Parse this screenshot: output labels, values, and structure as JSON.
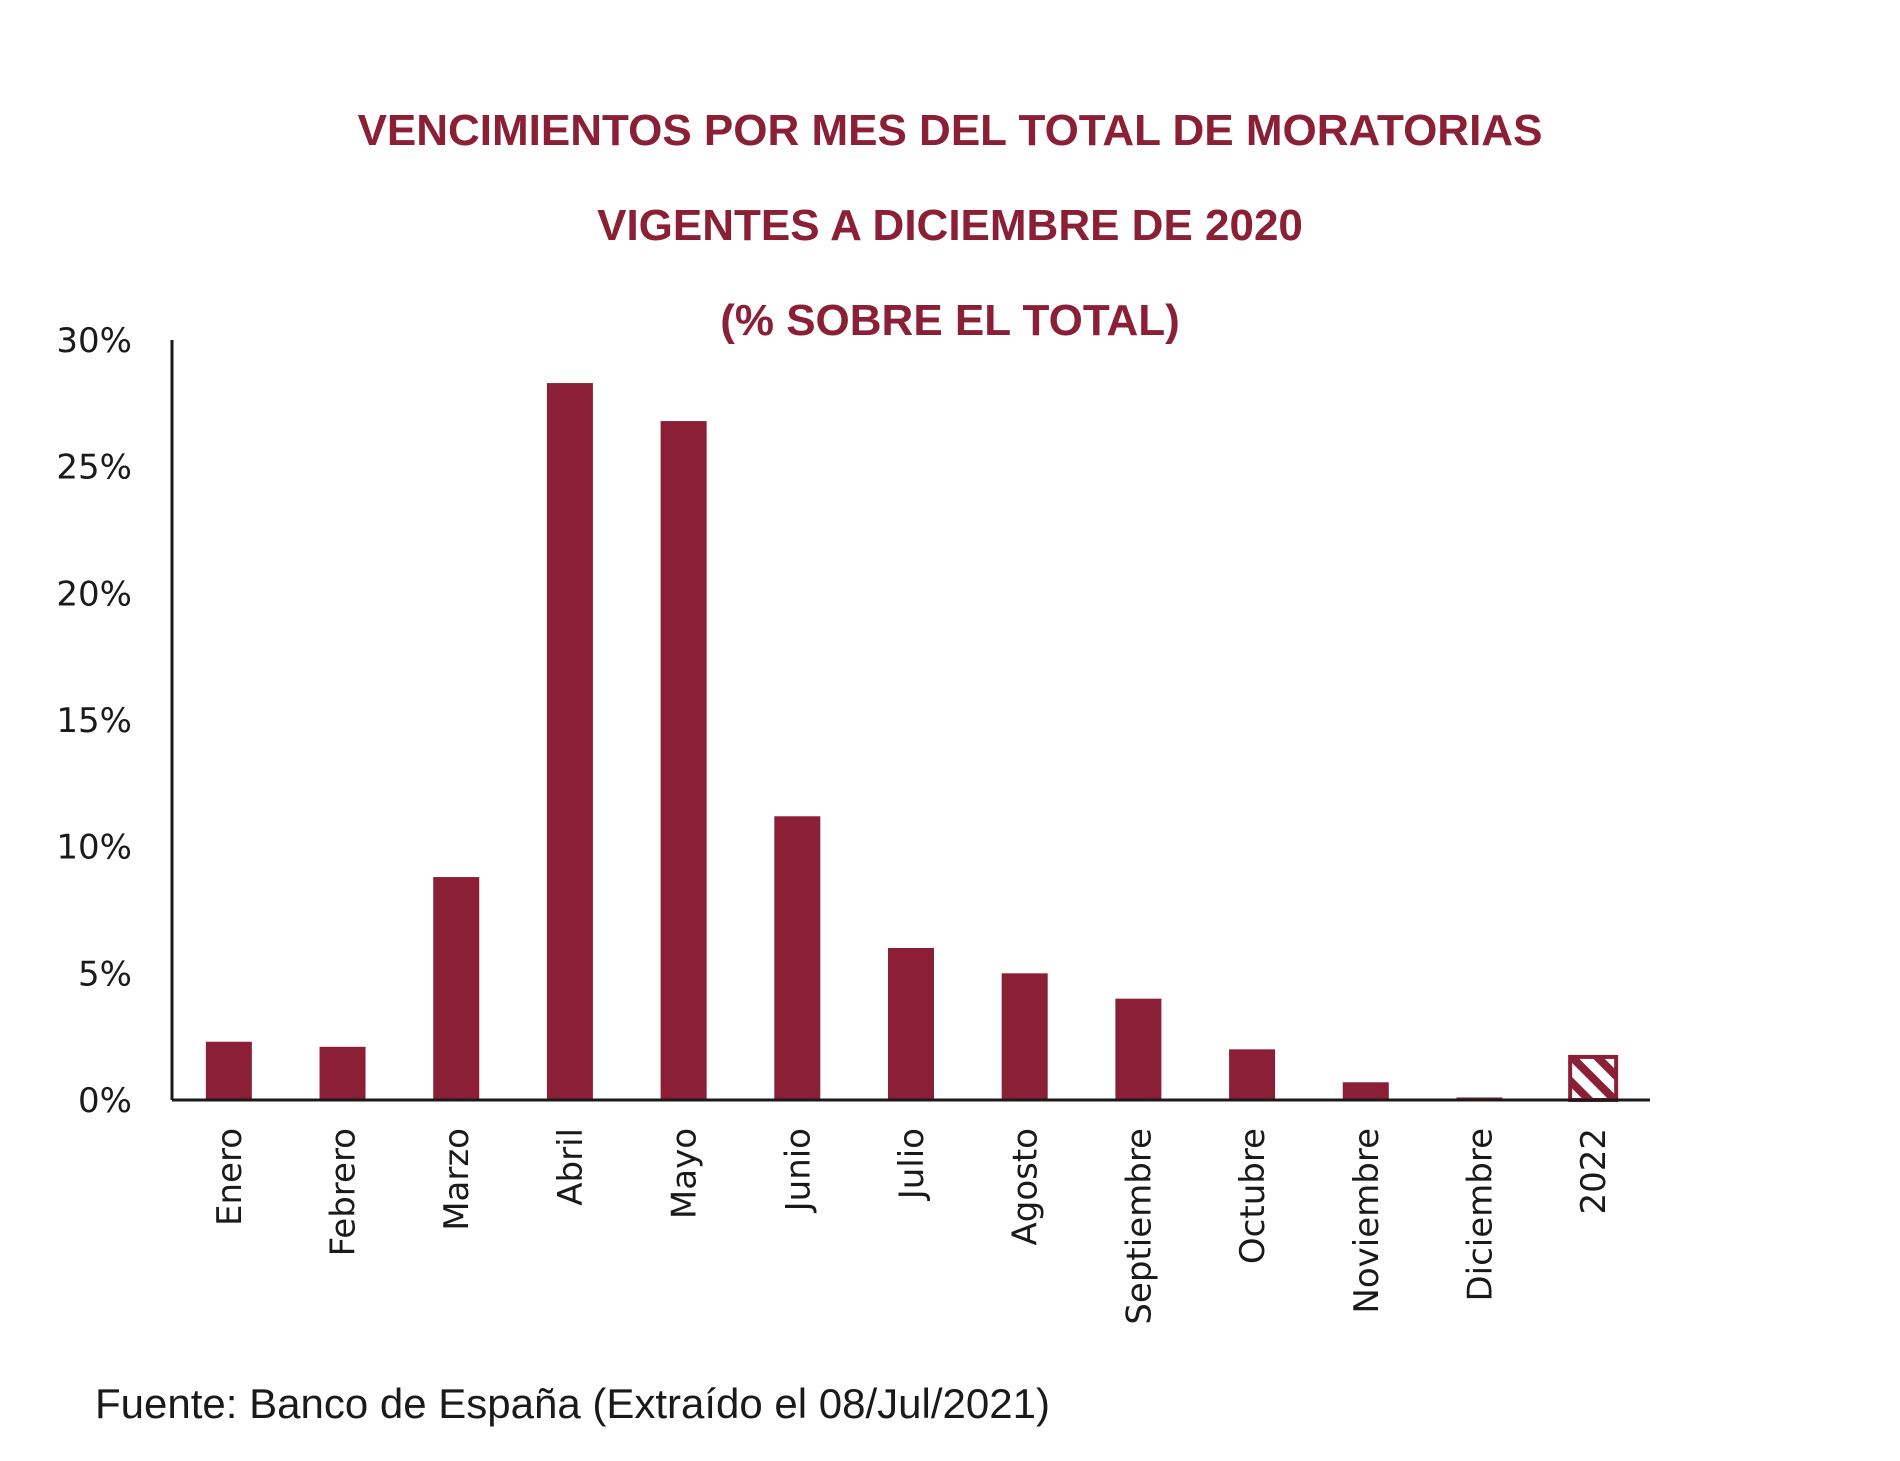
{
  "chart_data": {
    "type": "bar",
    "title": [
      "VENCIMIENTOS POR MES DEL TOTAL DE MORATORIAS",
      "VIGENTES A DICIEMBRE DE 2020",
      "(% SOBRE EL TOTAL)"
    ],
    "categories": [
      "Enero",
      "Febrero",
      "Marzo",
      "Abril",
      "Mayo",
      "Junio",
      "Julio",
      "Agosto",
      "Septiembre",
      "Octubre",
      "Noviembre",
      "Diciembre",
      "2022"
    ],
    "values": [
      2.3,
      2.1,
      8.8,
      28.3,
      26.8,
      11.2,
      6.0,
      5.0,
      4.0,
      2.0,
      0.7,
      0.1,
      1.7
    ],
    "hatched_categories": [
      "2022"
    ],
    "ylim": [
      0,
      30
    ],
    "y_ticks": [
      0,
      5,
      10,
      15,
      20,
      25,
      30
    ],
    "y_tick_labels": [
      "0%",
      "5%",
      "10%",
      "15%",
      "20%",
      "25%",
      "30%"
    ],
    "xlabel": "",
    "ylabel": "",
    "grid": false,
    "legend": "none",
    "bar_color": "#8a1f35",
    "title_color": "#8a1f35"
  },
  "source": "Fuente: Banco de España (Extraído el 08/Jul/2021)"
}
